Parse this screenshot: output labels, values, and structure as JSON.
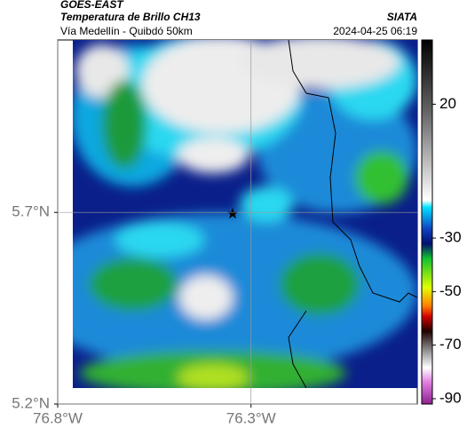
{
  "header": {
    "source": "GOES-EAST",
    "product": "Temperatura de Brillo CH13",
    "org": "SIATA",
    "route": "Vía Medellín - Quibdó 50km",
    "timestamp": "2024-04-25 06:19"
  },
  "map": {
    "xlim": [
      -76.8,
      -75.87
    ],
    "ylim": [
      5.2,
      6.15
    ],
    "xticks": [
      {
        "value": -76.8,
        "label": "76.8°W"
      },
      {
        "value": -76.3,
        "label": "76.3°W"
      }
    ],
    "yticks": [
      {
        "value": 5.2,
        "label": "5.2°N"
      },
      {
        "value": 5.7,
        "label": "5.7°N"
      }
    ],
    "grid": true
  },
  "colorbar": {
    "lim": [
      -92,
      44
    ],
    "ticks": [
      20,
      -30,
      -50,
      -70,
      -90
    ]
  }
}
